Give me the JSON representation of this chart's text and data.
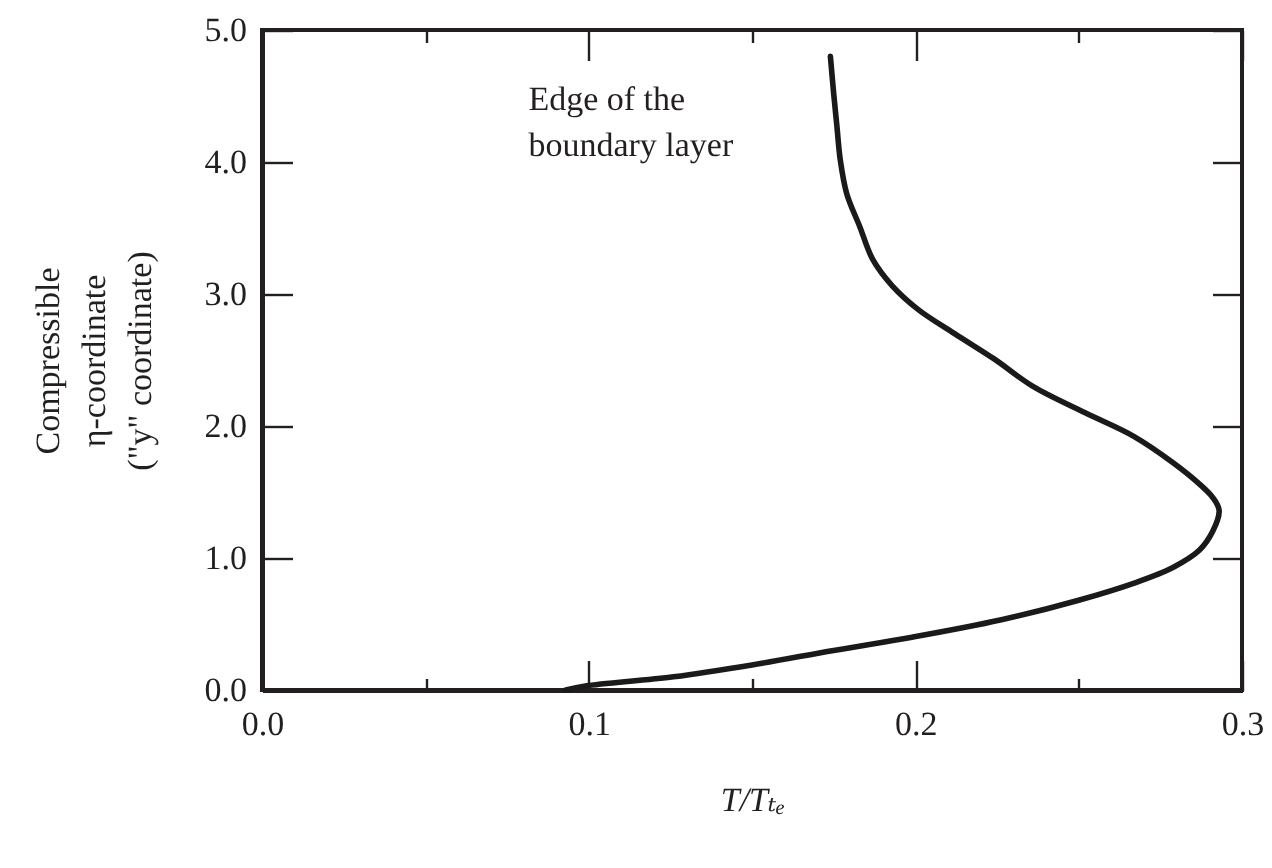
{
  "chart_data": {
    "type": "line",
    "xlabel": "T/Tₜₑ",
    "ylabel": "Compressible η-coordinate (\"y\" coordinate)",
    "annotations": [
      {
        "text": "Edge of the boundary layer",
        "x": 0.174,
        "y": 4.8
      }
    ],
    "x": [
      0.093,
      0.099,
      0.126,
      0.15,
      0.175,
      0.199,
      0.226,
      0.25,
      0.267,
      0.279,
      0.287,
      0.291,
      0.293,
      0.291,
      0.287,
      0.279,
      0.267,
      0.252,
      0.236,
      0.224,
      0.212,
      0.201,
      0.193,
      0.187,
      0.183,
      0.179,
      0.177,
      0.176,
      0.175,
      0.174
    ],
    "series": [
      {
        "color": "#1a1a1a",
        "values": [
          0,
          0.03,
          0.1,
          0.19,
          0.3,
          0.4,
          0.53,
          0.68,
          0.81,
          0.93,
          1.06,
          1.2,
          1.36,
          1.46,
          1.56,
          1.72,
          1.92,
          2.1,
          2.3,
          2.51,
          2.7,
          2.88,
          3.06,
          3.26,
          3.51,
          3.76,
          4.02,
          4.27,
          4.52,
          4.8
        ]
      }
    ],
    "xlim": [
      0,
      0.3
    ],
    "xticks": [
      {
        "value": 0,
        "label": "0.0"
      },
      {
        "value": 0.05,
        "label": null
      },
      0.1,
      {
        "value": 0.15,
        "label": null
      },
      0.2,
      {
        "value": 0.25,
        "label": null
      },
      0.3
    ],
    "ylim": [
      0,
      5
    ],
    "yticks": [
      {
        "value": 0,
        "label": "0.0"
      },
      {
        "value": 1,
        "label": "1.0"
      },
      {
        "value": 2,
        "label": "2.0"
      },
      {
        "value": 3,
        "label": "3.0"
      },
      {
        "value": 4,
        "label": "4.0"
      },
      {
        "value": 5,
        "label": "5.0"
      }
    ],
    "line_style": "solid"
  }
}
